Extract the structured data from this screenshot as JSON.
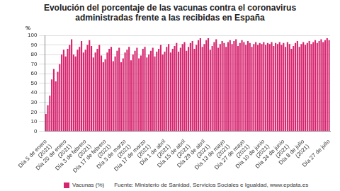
{
  "chart_data": {
    "type": "bar",
    "title": "Evolución del porcentaje de las vacunas contra el coronavirus administradas frente a las recibidas en España",
    "y_label": "%",
    "source": "Fuente: Ministerio de Sanidad, Servicios Sociales e Igualdad, www.epdata.es",
    "categories": [
      "Día 5 de enero (2021)",
      null,
      null,
      null,
      null,
      null,
      null,
      null,
      null,
      null,
      "Día 20 de enero (2021)",
      null,
      null,
      null,
      null,
      null,
      null,
      null,
      null,
      null,
      "Día 3 de febrero (2021)",
      null,
      null,
      null,
      null,
      null,
      null,
      null,
      null,
      null,
      "Día 17 de febrero (2021)",
      null,
      null,
      null,
      null,
      null,
      null,
      null,
      null,
      null,
      "Día 3 de marzo (2021)",
      null,
      null,
      null,
      null,
      null,
      null,
      null,
      null,
      null,
      "Día 17 de marzo (2021)",
      null,
      null,
      null,
      null,
      null,
      null,
      null,
      null,
      null,
      "Día 1 de abril (2021)",
      null,
      null,
      null,
      null,
      null,
      null,
      null,
      null,
      null,
      "Día 15 de abril (2021)",
      null,
      null,
      null,
      null,
      null,
      null,
      null,
      null,
      null,
      "Día 29 de abril (2021)",
      null,
      null,
      null,
      null,
      null,
      null,
      null,
      null,
      null,
      "Día 13 de mayo (2021)",
      null,
      null,
      null,
      null,
      null,
      null,
      null,
      null,
      null,
      "Día 27 de mayo (2021)",
      null,
      null,
      null,
      null,
      null,
      null,
      null,
      null,
      null,
      "Día 10 de junio (2021)",
      null,
      null,
      null,
      null,
      null,
      null,
      null,
      null,
      null,
      "Día 24 de junio (2021)",
      null,
      null,
      null,
      null,
      null,
      null,
      null,
      null,
      null,
      "Día 8 de julio (2021)",
      null,
      null,
      null,
      null,
      null,
      null,
      null,
      null,
      null,
      null,
      null,
      null,
      "Día 27 de julio"
    ],
    "series": [
      {
        "name": "Vacunas (%)",
        "color": "#d6246e",
        "values": [
          18,
          27,
          37,
          54,
          65,
          52,
          62,
          70,
          80,
          85,
          78,
          86,
          90,
          96,
          80,
          78,
          85,
          88,
          94,
          82,
          85,
          90,
          95,
          89,
          77,
          82,
          86,
          90,
          79,
          72,
          75,
          82,
          86,
          88,
          73,
          78,
          84,
          87,
          72,
          76,
          82,
          85,
          88,
          74,
          80,
          84,
          87,
          76,
          79,
          86,
          88,
          77,
          80,
          84,
          87,
          78,
          83,
          86,
          90,
          80,
          83,
          88,
          91,
          82,
          86,
          89,
          92,
          83,
          87,
          91,
          93,
          84,
          88,
          92,
          94,
          86,
          90,
          95,
          97,
          88,
          91,
          95,
          97,
          85,
          89,
          93,
          96,
          87,
          91,
          94,
          92,
          88,
          93,
          95,
          91,
          94,
          96,
          89,
          92,
          95,
          93,
          90,
          94,
          92,
          88,
          91,
          93,
          90,
          92,
          91,
          93,
          90,
          92,
          91,
          93,
          89,
          92,
          91,
          93,
          90,
          92,
          88,
          93,
          91,
          86,
          89,
          92,
          94,
          88,
          91,
          93,
          90,
          92,
          94,
          91,
          93,
          95,
          92,
          94,
          96,
          93,
          95,
          97,
          95
        ]
      }
    ],
    "ylim": [
      0,
      100
    ],
    "yticks": [
      0,
      10,
      20,
      30,
      40,
      50,
      60,
      70,
      80,
      90,
      100
    ],
    "grid": true,
    "legend": "bottom"
  }
}
